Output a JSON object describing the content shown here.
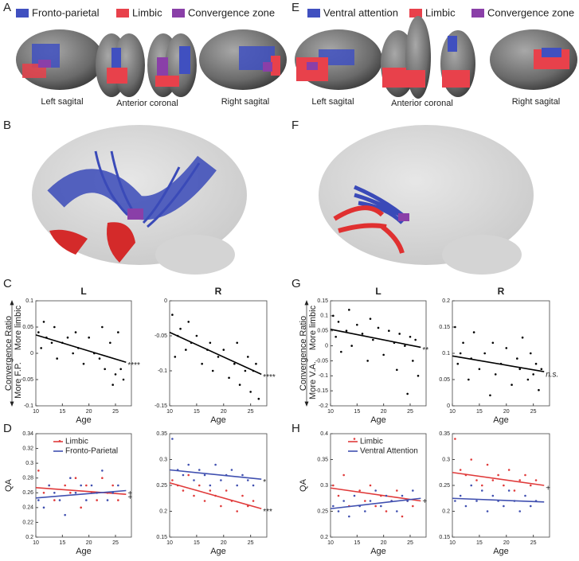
{
  "panel_labels": [
    "A",
    "B",
    "C",
    "D",
    "E",
    "F",
    "G",
    "H"
  ],
  "brain_legend_left": [
    "Fronto-parietal",
    "Limbic",
    "Convergence zone"
  ],
  "brain_legend_right": [
    "Ventral attention",
    "Limbic",
    "Convergence zone"
  ],
  "views": [
    "Left sagital",
    "Anterior coronal",
    "Right sagital"
  ],
  "chart_data": [
    {
      "type": "scatter",
      "title": "L",
      "x_label": "Age",
      "y_label": "Convergence Ratio",
      "y_label_up": "More limbic",
      "y_label_down": "More F.P.",
      "xlim": [
        10,
        28
      ],
      "xticks": [
        10,
        15,
        20,
        25
      ],
      "ylim": [
        -0.1,
        0.1
      ],
      "yticks": [
        -0.1,
        -0.05,
        0,
        0.05,
        0.1
      ],
      "series": [
        {
          "color": "#000000",
          "annotation": "****",
          "x": [
            10.5,
            11,
            11.5,
            12,
            13,
            13.5,
            14,
            15,
            16,
            17,
            17.5,
            18,
            19,
            20,
            21,
            22,
            22.5,
            23,
            24,
            24.5,
            25,
            25.5,
            26,
            26.5
          ],
          "values": [
            0.04,
            0.01,
            0.06,
            0.03,
            0.02,
            0.05,
            -0.01,
            0.02,
            0.03,
            0.0,
            0.04,
            0.01,
            -0.02,
            0.03,
            0.0,
            -0.01,
            0.05,
            -0.03,
            0.02,
            -0.06,
            -0.04,
            0.04,
            -0.03,
            -0.05
          ],
          "fit": {
            "x": [
              10,
              27
            ],
            "values": [
              0.035,
              -0.017
            ]
          }
        }
      ]
    },
    {
      "type": "scatter",
      "title": "R",
      "x_label": "Age",
      "xlim": [
        10,
        28
      ],
      "xticks": [
        10,
        15,
        20,
        25
      ],
      "ylim": [
        -0.15,
        0
      ],
      "yticks": [
        -0.15,
        -0.1,
        -0.05,
        0
      ],
      "series": [
        {
          "color": "#000000",
          "annotation": "****",
          "x": [
            10.5,
            11,
            11.5,
            12,
            13,
            13.5,
            14,
            15,
            16,
            17,
            17.5,
            18,
            19,
            20,
            21,
            22,
            22.5,
            23,
            24,
            24.5,
            25,
            25.5,
            26,
            26.5
          ],
          "values": [
            -0.02,
            -0.08,
            -0.05,
            -0.04,
            -0.07,
            -0.03,
            -0.06,
            -0.05,
            -0.09,
            -0.07,
            -0.06,
            -0.1,
            -0.08,
            -0.07,
            -0.11,
            -0.09,
            -0.06,
            -0.12,
            -0.1,
            -0.08,
            -0.13,
            -0.1,
            -0.09,
            -0.14
          ],
          "fit": {
            "x": [
              10,
              27
            ],
            "values": [
              -0.045,
              -0.105
            ]
          }
        }
      ]
    },
    {
      "type": "scatter",
      "x_label": "Age",
      "y_label": "QA",
      "xlim": [
        10,
        28
      ],
      "xticks": [
        10,
        15,
        20,
        25
      ],
      "ylim": [
        0.2,
        0.34
      ],
      "yticks": [
        0.2,
        0.22,
        0.24,
        0.26,
        0.28,
        0.3,
        0.32,
        0.34
      ],
      "series": [
        {
          "name": "Limbic",
          "color": "#e03a3a",
          "annotation": "+",
          "x": [
            10.5,
            11.5,
            12.5,
            13.5,
            14.5,
            15.5,
            16.5,
            17.5,
            18.5,
            19.5,
            20.5,
            21.5,
            22.5,
            23.5,
            24.5,
            25.5
          ],
          "values": [
            0.29,
            0.26,
            0.27,
            0.25,
            0.33,
            0.27,
            0.26,
            0.28,
            0.24,
            0.27,
            0.26,
            0.25,
            0.28,
            0.26,
            0.27,
            0.25
          ],
          "fit": {
            "x": [
              10,
              27
            ],
            "values": [
              0.267,
              0.258
            ]
          }
        },
        {
          "name": "Fronto-Parietal",
          "color": "#4050b0",
          "annotation": "+",
          "x": [
            10.5,
            11.5,
            12.5,
            13.5,
            14.5,
            15.5,
            16.5,
            17.5,
            18.5,
            19.5,
            20.5,
            21.5,
            22.5,
            23.5,
            24.5,
            25.5
          ],
          "values": [
            0.25,
            0.24,
            0.27,
            0.26,
            0.25,
            0.23,
            0.28,
            0.26,
            0.27,
            0.25,
            0.27,
            0.26,
            0.29,
            0.25,
            0.26,
            0.27
          ],
          "fit": {
            "x": [
              10,
              27
            ],
            "values": [
              0.253,
              0.263
            ]
          }
        }
      ]
    },
    {
      "type": "scatter",
      "x_label": "Age",
      "xlim": [
        10,
        28
      ],
      "xticks": [
        10,
        15,
        20,
        25
      ],
      "ylim": [
        0.15,
        0.35
      ],
      "yticks": [
        0.15,
        0.2,
        0.25,
        0.3,
        0.35
      ],
      "series": [
        {
          "color": "#e03a3a",
          "annotation": "***",
          "x": [
            10.5,
            11.5,
            12.5,
            13.5,
            14.5,
            15.5,
            16.5,
            17.5,
            18.5,
            19.5,
            20.5,
            21.5,
            22.5,
            23.5,
            24.5,
            25.5
          ],
          "values": [
            0.26,
            0.25,
            0.24,
            0.27,
            0.23,
            0.25,
            0.22,
            0.24,
            0.23,
            0.21,
            0.24,
            0.22,
            0.2,
            0.23,
            0.21,
            0.22
          ],
          "fit": {
            "x": [
              10,
              27
            ],
            "values": [
              0.255,
              0.205
            ]
          }
        },
        {
          "color": "#4050b0",
          "annotation": "*",
          "x": [
            10.5,
            11.5,
            12.5,
            13.5,
            14.5,
            15.5,
            16.5,
            17.5,
            18.5,
            19.5,
            20.5,
            21.5,
            22.5,
            23.5,
            24.5,
            25.5
          ],
          "values": [
            0.34,
            0.28,
            0.27,
            0.29,
            0.26,
            0.28,
            0.27,
            0.25,
            0.29,
            0.26,
            0.27,
            0.28,
            0.25,
            0.27,
            0.26,
            0.25
          ],
          "fit": {
            "x": [
              10,
              27
            ],
            "values": [
              0.28,
              0.262
            ]
          }
        }
      ]
    },
    {
      "type": "scatter",
      "title": "L",
      "x_label": "Age",
      "y_label": "Convergence Ratio",
      "y_label_up": "More limbic",
      "y_label_down": "More V.A.",
      "xlim": [
        10,
        28
      ],
      "xticks": [
        10,
        15,
        20,
        25
      ],
      "ylim": [
        -0.2,
        0.15
      ],
      "yticks": [
        -0.2,
        -0.15,
        -0.1,
        -0.05,
        0,
        0.05,
        0.1,
        0.15
      ],
      "series": [
        {
          "color": "#000000",
          "annotation": "**",
          "x": [
            10.5,
            11,
            11.5,
            12,
            13,
            13.5,
            14,
            15,
            16,
            17,
            17.5,
            18,
            19,
            20,
            21,
            22,
            22.5,
            23,
            24,
            24.5,
            25,
            25.5,
            26,
            26.5
          ],
          "values": [
            0.1,
            0.03,
            0.08,
            -0.02,
            0.05,
            0.12,
            0.0,
            0.07,
            0.04,
            -0.05,
            0.09,
            0.02,
            0.06,
            -0.03,
            0.05,
            0.01,
            -0.08,
            0.04,
            0.0,
            -0.16,
            0.03,
            -0.05,
            0.02,
            -0.1
          ],
          "fit": {
            "x": [
              10,
              27
            ],
            "values": [
              0.055,
              -0.005
            ]
          }
        }
      ]
    },
    {
      "type": "scatter",
      "title": "R",
      "x_label": "Age",
      "xlim": [
        10,
        28
      ],
      "xticks": [
        10,
        15,
        20,
        25
      ],
      "ylim": [
        0,
        0.2
      ],
      "yticks": [
        0,
        0.05,
        0.1,
        0.15,
        0.2
      ],
      "series": [
        {
          "color": "#000000",
          "annotation": "n.s.",
          "x": [
            10.5,
            11,
            11.5,
            12,
            13,
            13.5,
            14,
            15,
            16,
            17,
            17.5,
            18,
            19,
            20,
            21,
            22,
            22.5,
            23,
            24,
            24.5,
            25,
            25.5,
            26,
            26.5
          ],
          "values": [
            0.15,
            0.08,
            0.1,
            0.12,
            0.05,
            0.09,
            0.14,
            0.07,
            0.1,
            0.02,
            0.12,
            0.06,
            0.08,
            0.11,
            0.04,
            0.09,
            0.07,
            0.13,
            0.05,
            0.1,
            0.06,
            0.08,
            0.03,
            0.07
          ],
          "fit": {
            "x": [
              10,
              27
            ],
            "values": [
              0.095,
              0.065
            ]
          }
        }
      ]
    },
    {
      "type": "scatter",
      "x_label": "Age",
      "y_label": "QA",
      "xlim": [
        10,
        28
      ],
      "xticks": [
        10,
        15,
        20,
        25
      ],
      "ylim": [
        0.2,
        0.4
      ],
      "yticks": [
        0.2,
        0.25,
        0.3,
        0.35,
        0.4
      ],
      "series": [
        {
          "name": "Limbic",
          "color": "#e03a3a",
          "x": [
            10.5,
            11.5,
            12.5,
            13.5,
            14.5,
            15.5,
            16.5,
            17.5,
            18.5,
            19.5,
            20.5,
            21.5,
            22.5,
            23.5,
            24.5,
            25.5
          ],
          "values": [
            0.3,
            0.28,
            0.32,
            0.26,
            0.39,
            0.29,
            0.27,
            0.3,
            0.26,
            0.28,
            0.25,
            0.27,
            0.29,
            0.24,
            0.27,
            0.26
          ],
          "fit": {
            "x": [
              10,
              27
            ],
            "values": [
              0.295,
              0.27
            ]
          }
        },
        {
          "name": "Ventral Attention",
          "color": "#4050b0",
          "annotation": "+",
          "x": [
            10.5,
            11.5,
            12.5,
            13.5,
            14.5,
            15.5,
            16.5,
            17.5,
            18.5,
            19.5,
            20.5,
            21.5,
            22.5,
            23.5,
            24.5,
            25.5
          ],
          "values": [
            0.26,
            0.25,
            0.27,
            0.24,
            0.28,
            0.26,
            0.25,
            0.27,
            0.29,
            0.26,
            0.28,
            0.27,
            0.25,
            0.28,
            0.27,
            0.29
          ],
          "fit": {
            "x": [
              10,
              27
            ],
            "values": [
              0.255,
              0.275
            ]
          }
        }
      ]
    },
    {
      "type": "scatter",
      "x_label": "Age",
      "xlim": [
        10,
        28
      ],
      "xticks": [
        10,
        15,
        20,
        25
      ],
      "ylim": [
        0.15,
        0.35
      ],
      "yticks": [
        0.15,
        0.2,
        0.25,
        0.3,
        0.35
      ],
      "series": [
        {
          "color": "#e03a3a",
          "annotation": "+",
          "x": [
            10.5,
            11.5,
            12.5,
            13.5,
            14.5,
            15.5,
            16.5,
            17.5,
            18.5,
            19.5,
            20.5,
            21.5,
            22.5,
            23.5,
            24.5,
            25.5
          ],
          "values": [
            0.34,
            0.28,
            0.27,
            0.3,
            0.26,
            0.25,
            0.29,
            0.26,
            0.27,
            0.25,
            0.28,
            0.24,
            0.26,
            0.27,
            0.25,
            0.26
          ],
          "fit": {
            "x": [
              10,
              27
            ],
            "values": [
              0.275,
              0.25
            ]
          }
        },
        {
          "color": "#4050b0",
          "x": [
            10.5,
            11.5,
            12.5,
            13.5,
            14.5,
            15.5,
            16.5,
            17.5,
            18.5,
            19.5,
            20.5,
            21.5,
            22.5,
            23.5,
            24.5,
            25.5
          ],
          "values": [
            0.22,
            0.23,
            0.21,
            0.25,
            0.22,
            0.24,
            0.2,
            0.23,
            0.22,
            0.21,
            0.24,
            0.22,
            0.2,
            0.23,
            0.21,
            0.22
          ],
          "fit": {
            "x": [
              10,
              27
            ],
            "values": [
              0.225,
              0.218
            ]
          }
        }
      ]
    }
  ]
}
